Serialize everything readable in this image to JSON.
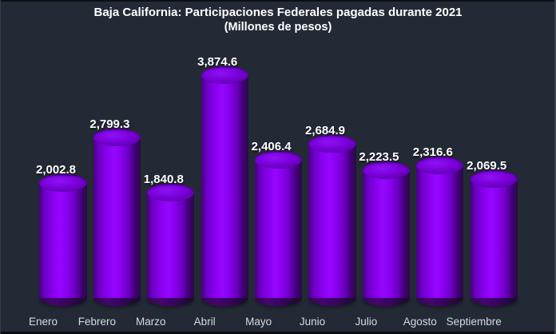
{
  "chart_data": {
    "type": "bar",
    "style": "3d-cylinder",
    "title": "Baja California: Participaciones Federales pagadas durante 2021",
    "subtitle": "(Millones de pesos)",
    "unit": "Millones de pesos",
    "categories": [
      "Enero",
      "Febrero",
      "Marzo",
      "Abril",
      "Mayo",
      "Junio",
      "Julio",
      "Agosto",
      "Septiembre"
    ],
    "values": [
      2002.8,
      2799.3,
      1840.8,
      3874.6,
      2406.4,
      2684.9,
      2223.5,
      2316.6,
      2069.5
    ],
    "value_labels": [
      "2,002.8",
      "2,799.3",
      "1,840.8",
      "3,874.6",
      "2,406.4",
      "2,684.9",
      "2,223.5",
      "2,316.6",
      "2,069.5"
    ],
    "xlabel": "",
    "ylabel": "",
    "ylim": [
      0,
      3874.6
    ],
    "grid": false,
    "legend": "none",
    "axes_hidden": true
  },
  "colors": {
    "background": "#232A35",
    "bar_bright": "#9506FF",
    "bar_mid": "#7E00DB",
    "bar_left_dark": "#470083",
    "bar_right_dark": "#250C40",
    "top_face": "#7A00DA",
    "bottom_shadow": "#1A0E28",
    "title": "#FFFFFF",
    "value_label": "#FFFFFF",
    "category_label": "#D6DAE0"
  }
}
